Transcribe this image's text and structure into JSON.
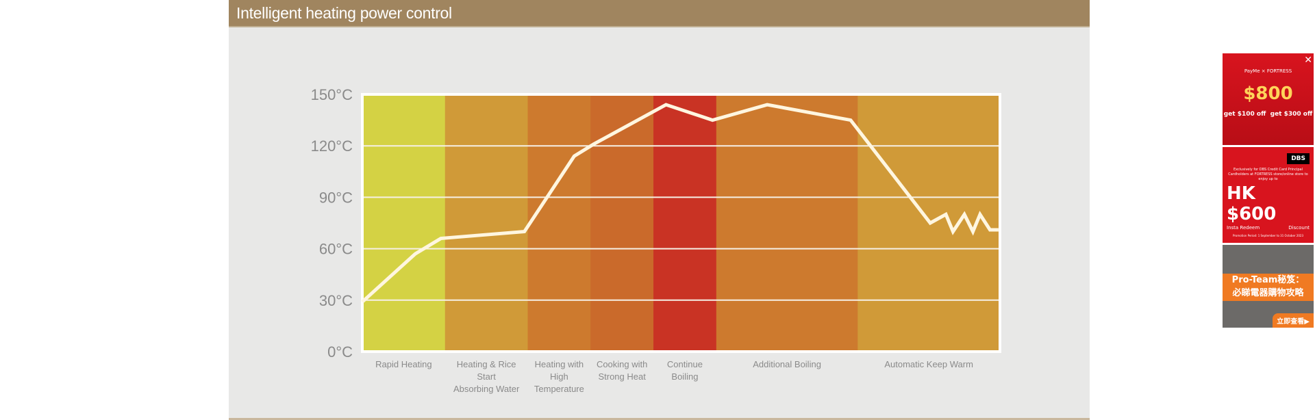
{
  "header": {
    "title": "Intelligent heating power control"
  },
  "chart_data": {
    "type": "line",
    "title": "",
    "xlabel": "",
    "ylabel": "",
    "ylim": [
      0,
      150
    ],
    "yticks": [
      "0°C",
      "30°C",
      "60°C",
      "90°C",
      "120°C",
      "150°C"
    ],
    "ytick_values": [
      0,
      30,
      60,
      90,
      120,
      150
    ],
    "grid": true,
    "stages": [
      {
        "label": [
          "Rapid Heating"
        ],
        "color": "#d4d244",
        "span": 1
      },
      {
        "label": [
          "Heating & Rice",
          "Start",
          "Absorbing Water"
        ],
        "color": "#d09a38",
        "span": 1
      },
      {
        "label": [
          "Heating with",
          "High",
          "Temperature"
        ],
        "color": "#cd7a2e",
        "span": 0.76
      },
      {
        "label": [
          "Cooking with",
          "Strong Heat"
        ],
        "color": "#ca6a2b",
        "span": 0.76
      },
      {
        "label": [
          "Continue",
          "Boiling"
        ],
        "color": "#c93324",
        "span": 0.76
      },
      {
        "label": [
          "Additional Boiling"
        ],
        "color": "#cd7a2e",
        "span": 1.71
      },
      {
        "label": [
          "Automatic Keep Warm"
        ],
        "color": "#d09a38",
        "span": 1.72
      }
    ],
    "series": [
      {
        "x_stage": [
          0,
          0.64,
          0.95,
          1.96,
          2.74,
          3.05,
          4.2,
          4.94,
          5.36,
          5.95,
          6.51,
          6.62,
          6.67,
          6.75,
          6.81,
          6.86,
          6.93,
          6.99
        ],
        "y": [
          29,
          57,
          66,
          70,
          114,
          121,
          144,
          135,
          144,
          135,
          75,
          80,
          70,
          80,
          70,
          80,
          71,
          71
        ],
        "color": "#fff6e0"
      }
    ]
  },
  "ad": {
    "banner1": {
      "brands": "PayMe × FORTRESS",
      "amount": "$800",
      "offer1": "get $100 off",
      "offer2": "get $300 off"
    },
    "banner2": {
      "brand": "DBS",
      "text": "Exclusively for DBS Credit Card Principal Cardholders at FORTRESS store/online store to enjoy up to",
      "amount": "HK $600",
      "badge": "Insta Redeem",
      "suffix": "Discount",
      "period": "Promotion Period: 1 September to 31 October 2023"
    },
    "banner3": {
      "line1": "Pro-Team秘笈：",
      "line2": "必睇電器購物攻略",
      "cta": "立即查看▶"
    },
    "close_icon": "close-icon"
  }
}
